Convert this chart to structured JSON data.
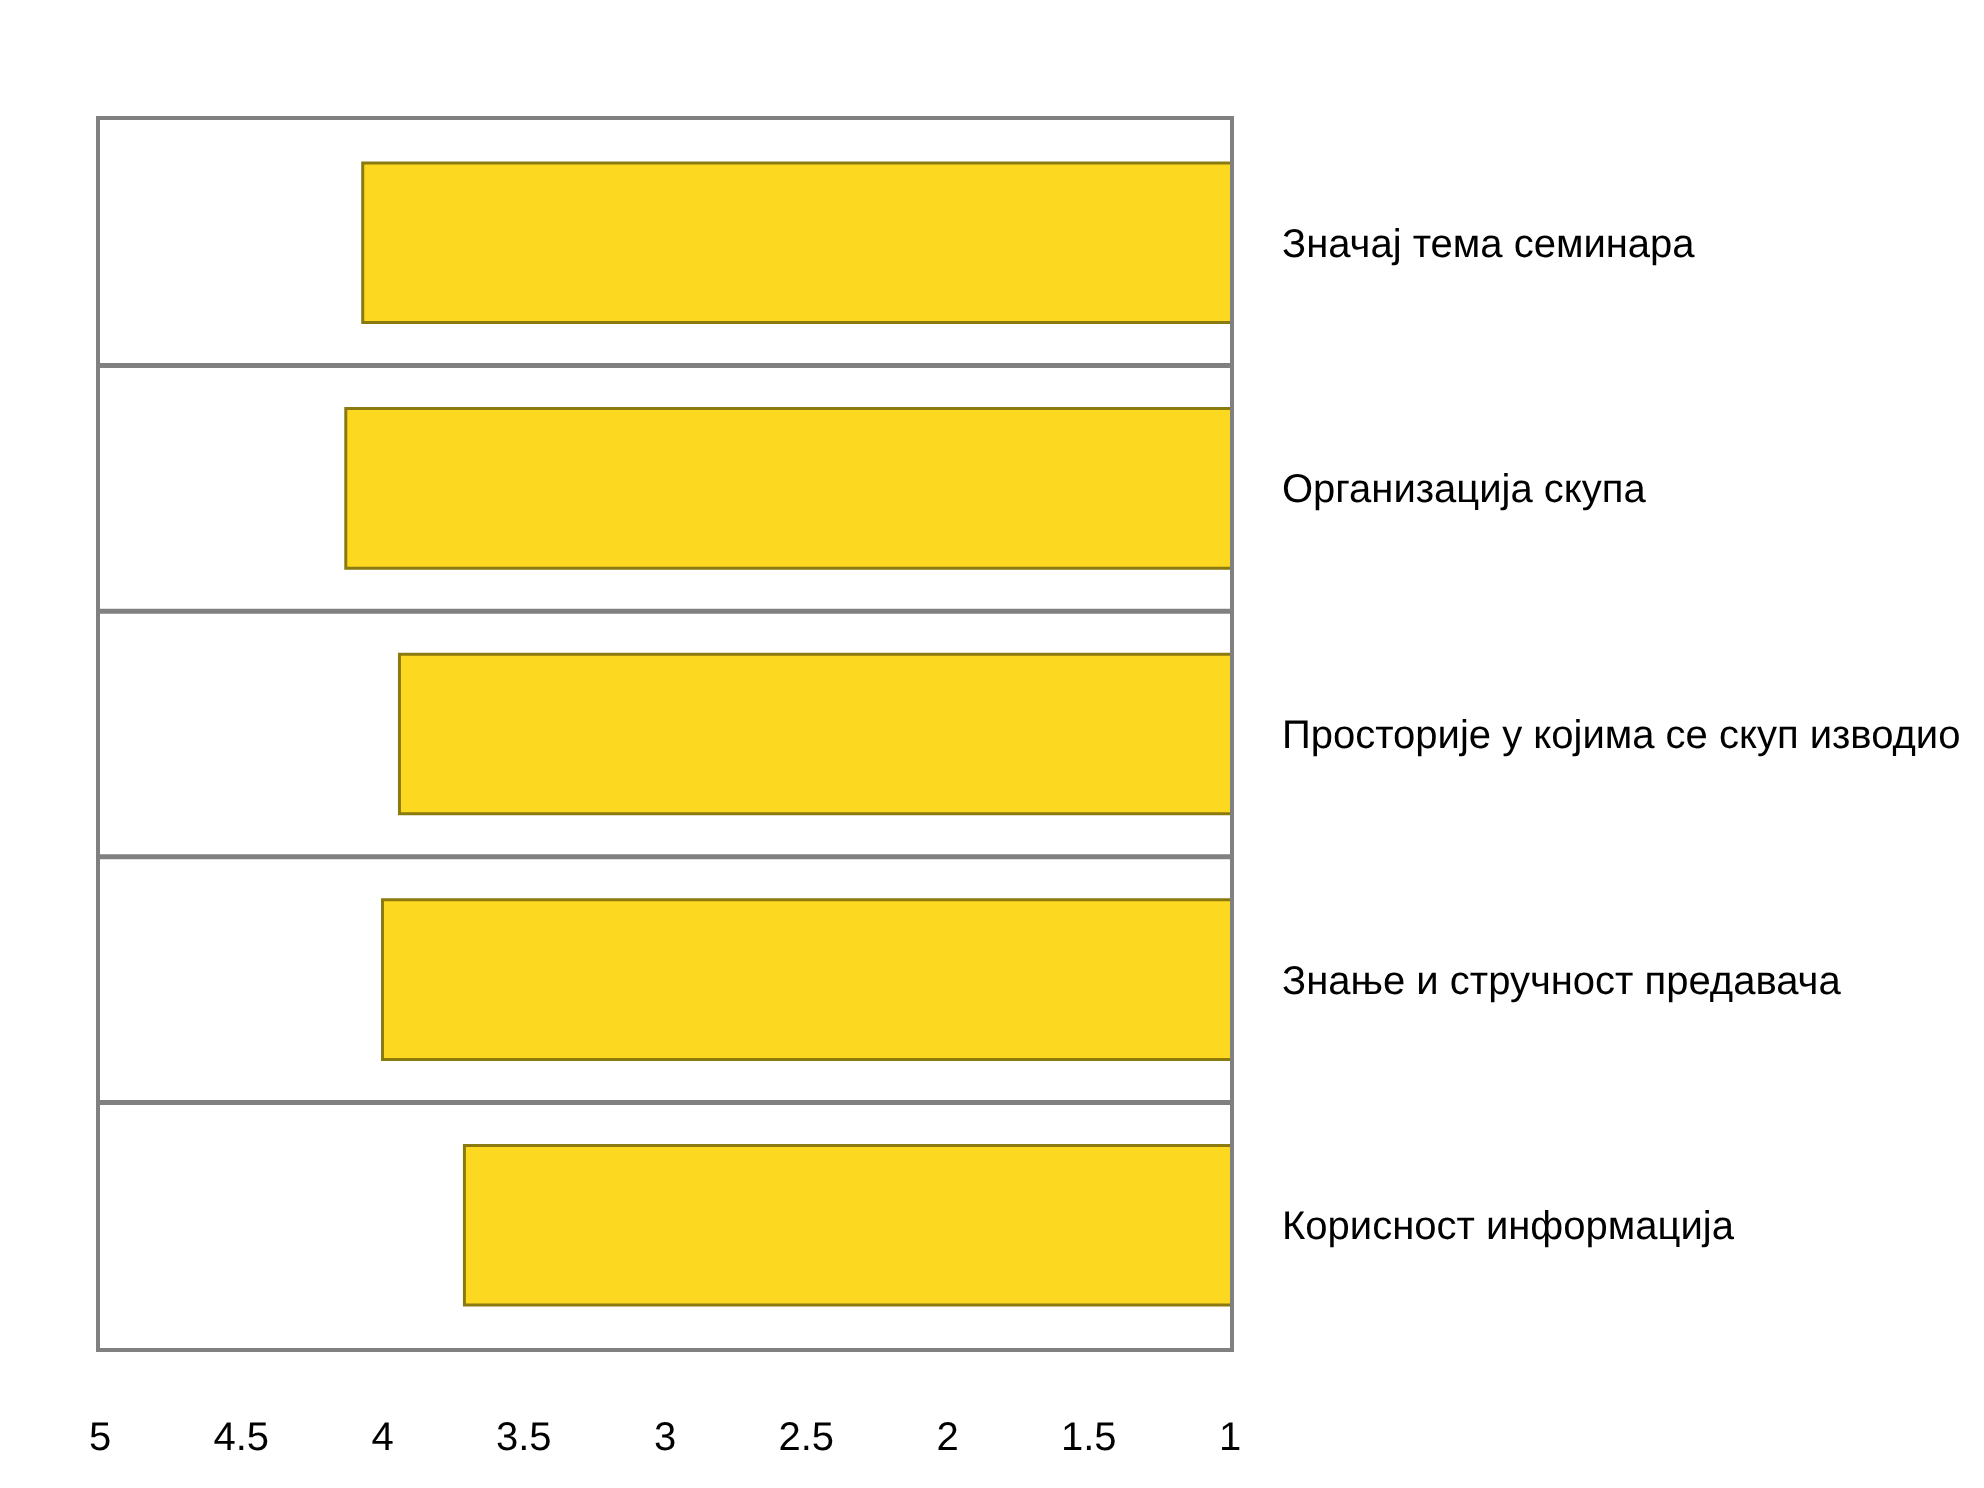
{
  "chart_data": {
    "type": "bar",
    "orientation": "horizontal",
    "categories": [
      "Значај тема семинара",
      "Организација скупа",
      "Просторије у којима се скуп изводио",
      "Знање и стручност предавача",
      "Корисност информација"
    ],
    "values": [
      4.07,
      4.13,
      3.94,
      4.0,
      3.71
    ],
    "color": "#fcd920",
    "xlim": [
      5,
      1
    ],
    "xticks": [
      5,
      4.5,
      4,
      3.5,
      3,
      2.5,
      2,
      1.5,
      1
    ],
    "grid": "y",
    "legend": false
  }
}
